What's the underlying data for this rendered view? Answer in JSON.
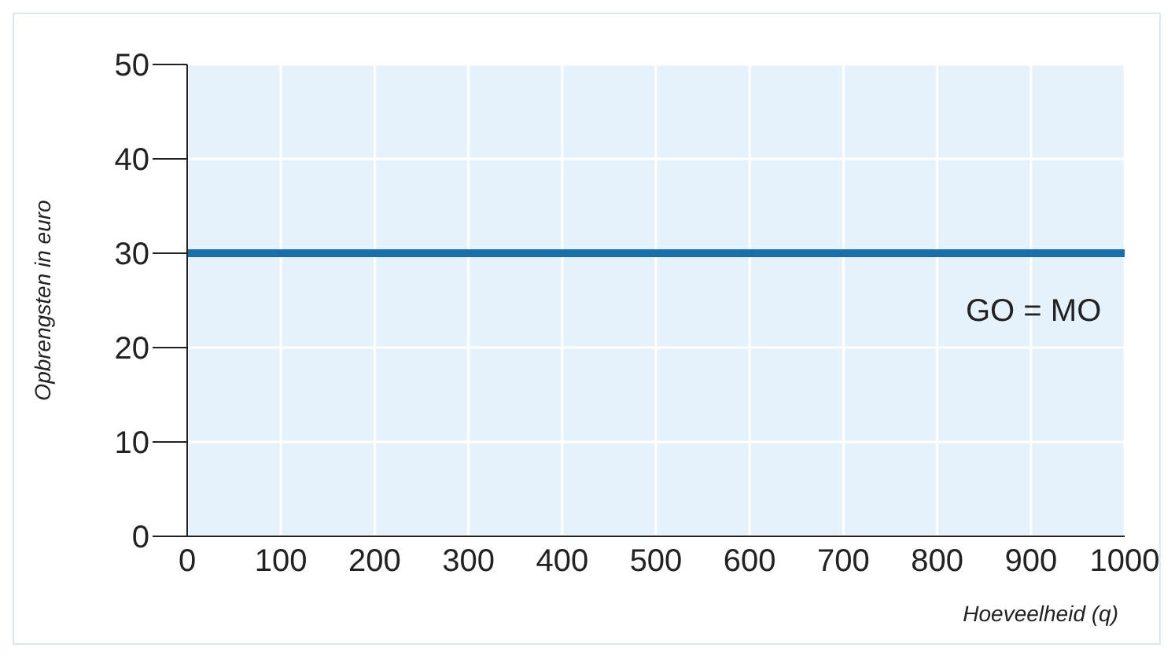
{
  "chart_data": {
    "type": "line",
    "xlabel": "Hoeveelheid (q)",
    "ylabel": "Opbrengsten in euro",
    "x": [
      0,
      1000
    ],
    "series": [
      {
        "color": "#1b6fa9",
        "values": [
          30,
          30
        ]
      }
    ],
    "xlim": [
      0,
      1000
    ],
    "xticks": [
      0,
      100,
      200,
      300,
      400,
      500,
      600,
      700,
      800,
      900,
      1000
    ],
    "ylim": [
      0,
      50
    ],
    "yticks": [
      0,
      10,
      20,
      30,
      40,
      50
    ],
    "grid": true,
    "marker": "none",
    "line_style": "solid",
    "annotations": [
      "GO = MO"
    ]
  }
}
